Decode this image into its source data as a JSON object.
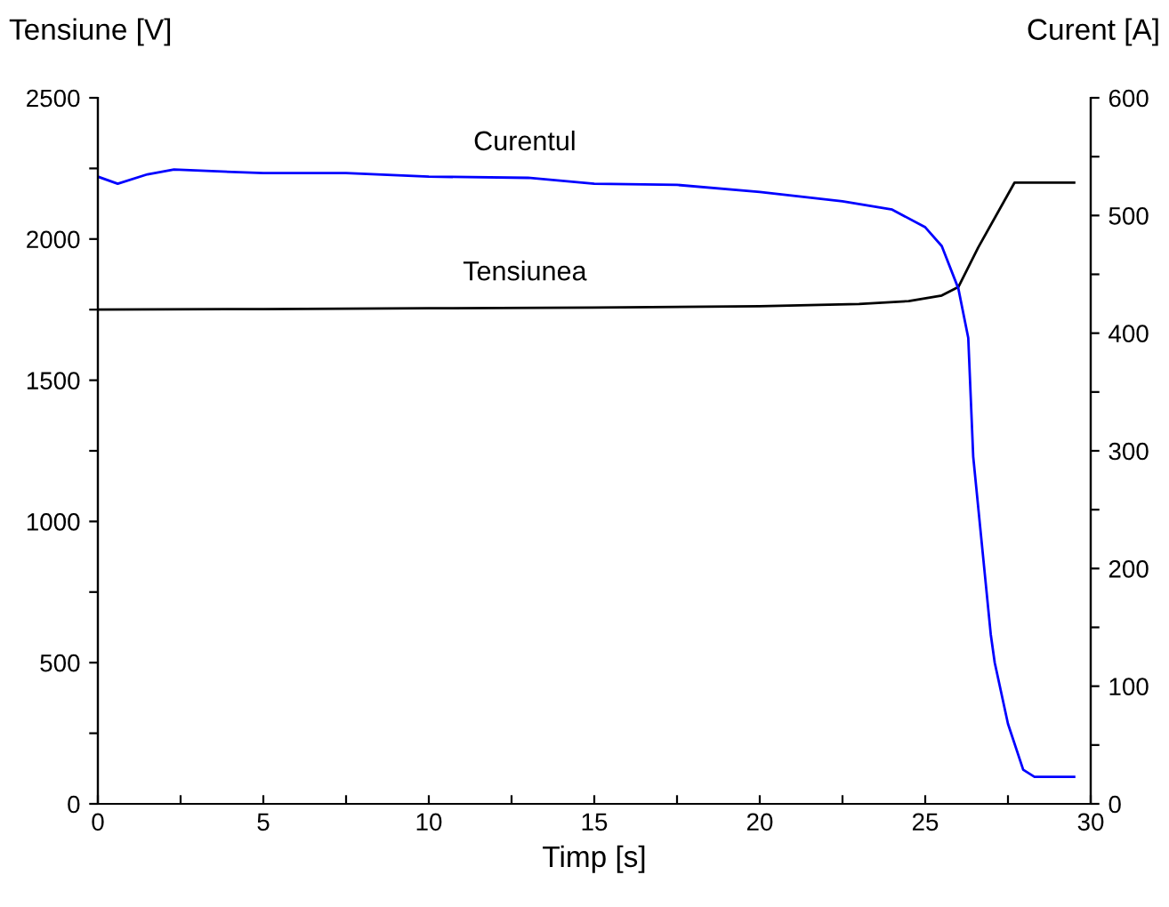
{
  "chart_data": {
    "type": "line",
    "xlabel": "Timp [s]",
    "ylabel": "Tensiune [V]",
    "y2label": "Curent [A]",
    "xlim": [
      0,
      30
    ],
    "xticks": [
      0,
      {
        "value": 2.5,
        "label": null
      },
      5,
      {
        "value": 7.5,
        "label": null
      },
      10,
      {
        "value": 12.5,
        "label": null
      },
      15,
      {
        "value": 17.5,
        "label": null
      },
      20,
      {
        "value": 22.5,
        "label": null
      },
      25,
      {
        "value": 27.5,
        "label": null
      },
      30
    ],
    "ylim": [
      0,
      2500
    ],
    "yticks": [
      0,
      {
        "value": 250,
        "label": null
      },
      500,
      {
        "value": 750,
        "label": null
      },
      1000,
      {
        "value": 1250,
        "label": null
      },
      1500,
      {
        "value": 1750,
        "label": null
      },
      2000,
      {
        "value": 2250,
        "label": null
      },
      2500
    ],
    "y2lim": [
      0,
      600
    ],
    "y2ticks": [
      0,
      {
        "value": 50,
        "label": null
      },
      100,
      {
        "value": 150,
        "label": null
      },
      200,
      {
        "value": 250,
        "label": null
      },
      300,
      {
        "value": 350,
        "label": null
      },
      400,
      {
        "value": 450,
        "label": null
      },
      500,
      {
        "value": 550,
        "label": null
      },
      600
    ],
    "grid": false,
    "legend": false,
    "marker": "none",
    "line_style": "solid",
    "series": [
      {
        "name": "Tensiunea",
        "color": "#000000",
        "x": [
          0,
          5,
          10,
          15,
          20,
          23,
          24.5,
          25.5,
          26,
          26.6,
          27.7,
          29.5
        ],
        "values": [
          1750,
          1752,
          1755,
          1757,
          1762,
          1770,
          1780,
          1800,
          1830,
          1970,
          2200,
          2200
        ]
      },
      {
        "name": "Curentul",
        "color": "#0000ff",
        "axis": "y2",
        "x": [
          0,
          0.6,
          1.5,
          2.3,
          5,
          7.5,
          10,
          13,
          15,
          17.5,
          20,
          22.5,
          24,
          25,
          25.5,
          26,
          26.3,
          26.45,
          26.98,
          27.1,
          27.5,
          27.96,
          28.3,
          29.5
        ],
        "values": [
          533,
          527,
          535,
          539,
          536,
          536,
          533,
          532,
          527,
          526,
          520,
          512,
          505,
          490,
          474,
          438,
          396,
          295,
          144,
          120,
          68,
          29,
          23,
          23
        ]
      }
    ]
  }
}
